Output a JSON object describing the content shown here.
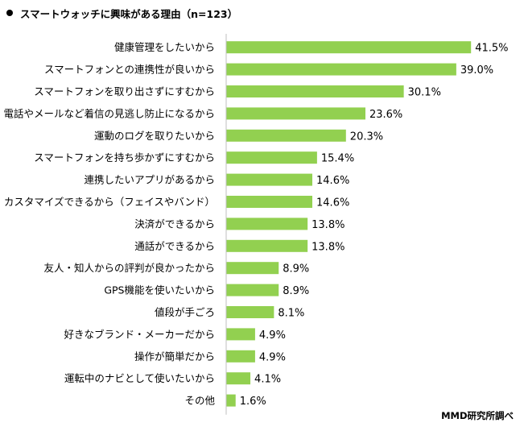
{
  "header": {
    "title": "スマートウォッチに興味がある理由（n=123）"
  },
  "footer": {
    "source": "MMD研究所調べ"
  },
  "colors": {
    "bar": "#92d050",
    "axis": "#bfbfbf",
    "text": "#000000"
  },
  "chart_data": {
    "type": "bar",
    "orientation": "horizontal",
    "title": "スマートウォッチに興味がある理由（n=123）",
    "unit": "%",
    "categories": [
      "健康管理をしたいから",
      "スマートフォンとの連携性が良いから",
      "スマートフォンを取り出さずにすむから",
      "電話やメールなど着信の見逃し防止になるから",
      "運動のログを取りたいから",
      "スマートフォンを持ち歩かずにすむから",
      "連携したいアプリがあるから",
      "カスタマイズできるから（フェイスやバンド）",
      "決済ができるから",
      "通話ができるから",
      "友人・知人からの評判が良かったから",
      "GPS機能を使いたいから",
      "値段が手ごろ",
      "好きなブランド・メーカーだから",
      "操作が簡単だから",
      "運転中のナビとして使いたいから",
      "その他"
    ],
    "values": [
      41.5,
      39.0,
      30.1,
      23.6,
      20.3,
      15.4,
      14.6,
      14.6,
      13.8,
      13.8,
      8.9,
      8.9,
      8.1,
      4.9,
      4.9,
      4.1,
      1.6
    ],
    "value_labels": [
      "41.5%",
      "39.0%",
      "30.1%",
      "23.6%",
      "20.3%",
      "15.4%",
      "14.6%",
      "14.6%",
      "13.8%",
      "13.8%",
      "8.9%",
      "8.9%",
      "8.1%",
      "4.9%",
      "4.9%",
      "4.1%",
      "1.6%"
    ],
    "grid": false,
    "legend": "none"
  }
}
